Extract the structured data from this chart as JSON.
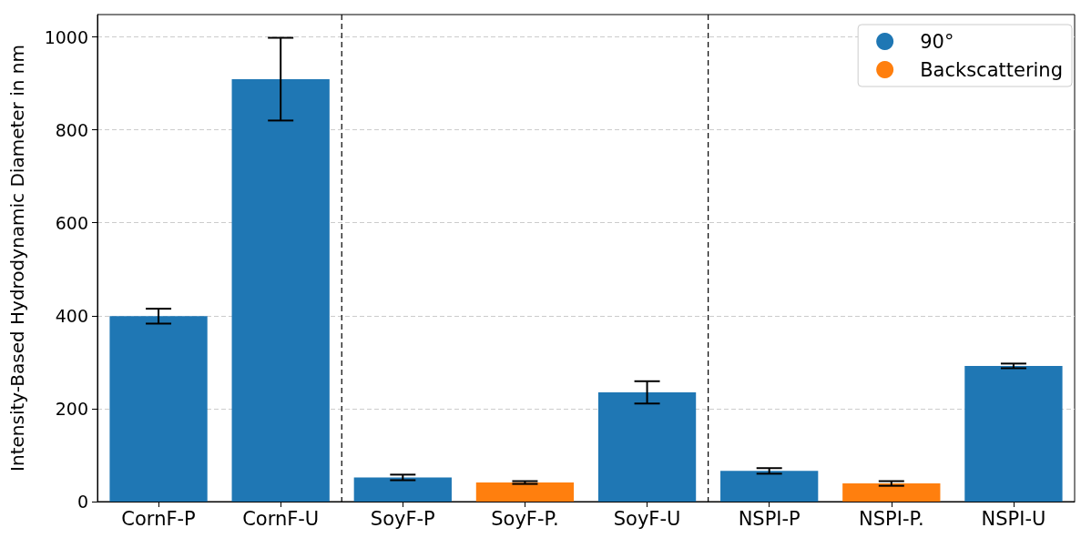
{
  "chart_data": {
    "type": "bar",
    "ylabel": "Intensity-Based Hydrodynamic Diameter in nm",
    "categories": [
      "CornF-P",
      "CornF-U",
      "SoyF-P",
      "SoyF-P.",
      "SoyF-U",
      "NSPI-P",
      "NSPI-P.",
      "NSPI-U"
    ],
    "series": [
      {
        "name": "90°",
        "color": "#1f77b4",
        "values": [
          399,
          909,
          52,
          null,
          235,
          66,
          null,
          292
        ],
        "errors": [
          16,
          89,
          6,
          null,
          24,
          6,
          null,
          5
        ]
      },
      {
        "name": "Backscattering",
        "color": "#ff7f0e",
        "values": [
          null,
          null,
          null,
          41,
          null,
          null,
          39,
          null
        ],
        "errors": [
          null,
          null,
          null,
          3,
          null,
          null,
          5,
          null
        ]
      }
    ],
    "stacked": true,
    "ylim": [
      0,
      1048
    ],
    "yticks": [
      0,
      200,
      400,
      600,
      800,
      1000
    ],
    "grid": "y",
    "legend": "top right"
  }
}
